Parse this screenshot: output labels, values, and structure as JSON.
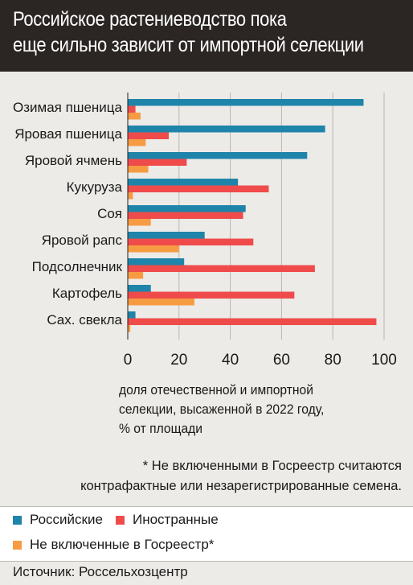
{
  "title_lines": [
    "Российское растениеводство пока",
    "еще сильно зависит от импортной селекции"
  ],
  "xlabel_lines": [
    "доля отечественной и импортной",
    "селекции, высаженной в 2022 году,",
    "% от площади"
  ],
  "footnote_lines": [
    "* Не включенными в Госреестр считаются",
    "контрафактные или незарегистрированные семена."
  ],
  "legend": {
    "russian": "Российские",
    "foreign": "Иностранные",
    "unregistered": "Не включенные в Госреестр*"
  },
  "source": "Источник: Россельхозцентр",
  "colors": {
    "russian": "#1f84aa",
    "foreign": "#ef4b4b",
    "unregistered": "#f79b43",
    "header_bg": "#2b2523",
    "background": "#ecebe7"
  },
  "chart_data": {
    "type": "bar",
    "orientation": "horizontal",
    "categories": [
      "Озимая пшеница",
      "Яровая пшеница",
      "Яровой ячмень",
      "Кукуруза",
      "Соя",
      "Яровой рапс",
      "Подсолнечник",
      "Картофель",
      "Сах. свекла"
    ],
    "series": [
      {
        "name": "Российские",
        "key": "russian",
        "values": [
          92,
          77,
          70,
          43,
          46,
          30,
          22,
          9,
          3
        ]
      },
      {
        "name": "Иностранные",
        "key": "foreign",
        "values": [
          3,
          16,
          23,
          55,
          45,
          49,
          73,
          65,
          97
        ]
      },
      {
        "name": "Не включенные в Госреестр*",
        "key": "unregistered",
        "values": [
          5,
          7,
          8,
          2,
          9,
          20,
          6,
          26,
          1
        ]
      }
    ],
    "xticks": [
      0,
      20,
      40,
      60,
      80,
      100
    ],
    "xlim": [
      0,
      100
    ],
    "grid": true
  }
}
